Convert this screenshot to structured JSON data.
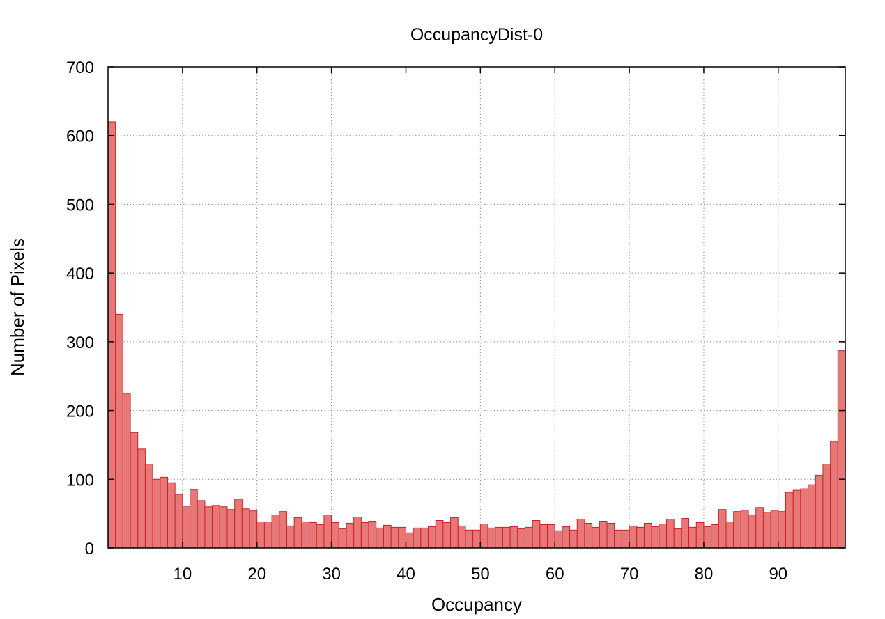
{
  "chart_data": {
    "type": "bar",
    "title": "OccupancyDist-0",
    "xlabel": "Occupancy",
    "ylabel": "Number of Pixels",
    "xlim": [
      0,
      99
    ],
    "ylim": [
      0,
      700
    ],
    "xticks": [
      10,
      20,
      30,
      40,
      50,
      60,
      70,
      80,
      90
    ],
    "yticks": [
      0,
      100,
      200,
      300,
      400,
      500,
      600,
      700
    ],
    "grid": true,
    "colors": {
      "bar_fill": "#e87878",
      "bar_edge": "#cc2222"
    },
    "x": [
      0,
      1,
      2,
      3,
      4,
      5,
      6,
      7,
      8,
      9,
      10,
      11,
      12,
      13,
      14,
      15,
      16,
      17,
      18,
      19,
      20,
      21,
      22,
      23,
      24,
      25,
      26,
      27,
      28,
      29,
      30,
      31,
      32,
      33,
      34,
      35,
      36,
      37,
      38,
      39,
      40,
      41,
      42,
      43,
      44,
      45,
      46,
      47,
      48,
      49,
      50,
      51,
      52,
      53,
      54,
      55,
      56,
      57,
      58,
      59,
      60,
      61,
      62,
      63,
      64,
      65,
      66,
      67,
      68,
      69,
      70,
      71,
      72,
      73,
      74,
      75,
      76,
      77,
      78,
      79,
      80,
      81,
      82,
      83,
      84,
      85,
      86,
      87,
      88,
      89,
      90,
      91,
      92,
      93,
      94,
      95,
      96,
      97,
      98
    ],
    "values": [
      620,
      340,
      225,
      168,
      144,
      122,
      100,
      103,
      95,
      78,
      61,
      85,
      69,
      60,
      62,
      60,
      56,
      71,
      57,
      54,
      38,
      38,
      48,
      53,
      32,
      44,
      38,
      37,
      34,
      48,
      37,
      28,
      36,
      45,
      37,
      39,
      29,
      33,
      30,
      30,
      22,
      29,
      29,
      31,
      40,
      37,
      44,
      32,
      26,
      26,
      35,
      29,
      30,
      30,
      31,
      28,
      30,
      40,
      34,
      34,
      25,
      31,
      26,
      42,
      36,
      30,
      39,
      36,
      26,
      26,
      32,
      30,
      36,
      31,
      35,
      42,
      28,
      43,
      30,
      37,
      31,
      34,
      56,
      38,
      53,
      55,
      48,
      59,
      52,
      55,
      53,
      81,
      84,
      86,
      92,
      106,
      122,
      155,
      287
    ]
  }
}
